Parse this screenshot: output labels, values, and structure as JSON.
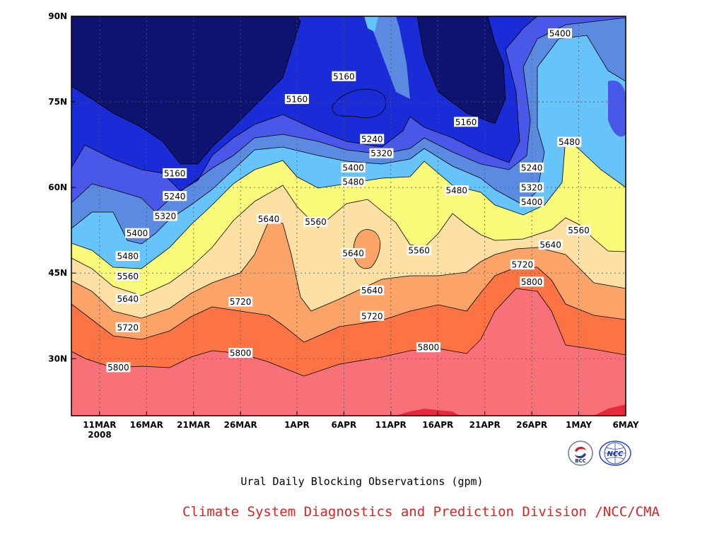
{
  "chart_data": {
    "type": "contour-filled",
    "title": "Ural Daily Blocking Observations (gpm)",
    "year_label": "2008",
    "x_ticks": [
      "11MAR",
      "16MAR",
      "21MAR",
      "26MAR",
      "1APR",
      "6APR",
      "11APR",
      "16APR",
      "21APR",
      "26APR",
      "1MAY",
      "6MAY"
    ],
    "y_ticks": [
      "30N",
      "45N",
      "60N",
      "75N",
      "90N"
    ],
    "xlim": [
      "2008-03-08",
      "2008-05-06"
    ],
    "ylim": [
      20,
      90
    ],
    "grid": true,
    "levels": [
      5160,
      5240,
      5320,
      5400,
      5480,
      5560,
      5640,
      5720,
      5800,
      5880
    ],
    "fill_colors": [
      "#0e1370",
      "#1a2cd8",
      "#4a58ea",
      "#5b8be0",
      "#66c4fa",
      "#fafa7a",
      "#fce0a4",
      "#fca468",
      "#fc7444",
      "#f87078",
      "#e6283c"
    ],
    "contour_labels": [
      {
        "value": 5160,
        "lat": 79.5,
        "date": "2008-04-06"
      },
      {
        "value": 5160,
        "lat": 75.5,
        "date": "2008-04-01"
      },
      {
        "value": 5160,
        "lat": 71.5,
        "date": "2008-04-19"
      },
      {
        "value": 5160,
        "lat": 62.5,
        "date": "2008-03-19"
      },
      {
        "value": 5240,
        "lat": 68.5,
        "date": "2008-04-09"
      },
      {
        "value": 5240,
        "lat": 63.5,
        "date": "2008-04-26"
      },
      {
        "value": 5240,
        "lat": 58.5,
        "date": "2008-03-19"
      },
      {
        "value": 5320,
        "lat": 66.0,
        "date": "2008-04-10"
      },
      {
        "value": 5320,
        "lat": 60.0,
        "date": "2008-04-26"
      },
      {
        "value": 5320,
        "lat": 55.0,
        "date": "2008-03-18"
      },
      {
        "value": 5400,
        "lat": 87.0,
        "date": "2008-04-29"
      },
      {
        "value": 5400,
        "lat": 63.5,
        "date": "2008-04-07"
      },
      {
        "value": 5400,
        "lat": 57.5,
        "date": "2008-04-26"
      },
      {
        "value": 5400,
        "lat": 52.0,
        "date": "2008-03-15"
      },
      {
        "value": 5480,
        "lat": 68.0,
        "date": "2008-04-30"
      },
      {
        "value": 5480,
        "lat": 61.0,
        "date": "2008-04-07"
      },
      {
        "value": 5480,
        "lat": 59.5,
        "date": "2008-04-18"
      },
      {
        "value": 5480,
        "lat": 48.0,
        "date": "2008-03-14"
      },
      {
        "value": 5560,
        "lat": 54.0,
        "date": "2008-04-03"
      },
      {
        "value": 5560,
        "lat": 52.5,
        "date": "2008-05-01"
      },
      {
        "value": 5560,
        "lat": 49.0,
        "date": "2008-04-14"
      },
      {
        "value": 5560,
        "lat": 44.5,
        "date": "2008-03-14"
      },
      {
        "value": 5640,
        "lat": 54.5,
        "date": "2008-03-29"
      },
      {
        "value": 5640,
        "lat": 48.5,
        "date": "2008-04-07"
      },
      {
        "value": 5640,
        "lat": 50.0,
        "date": "2008-04-28"
      },
      {
        "value": 5640,
        "lat": 42.0,
        "date": "2008-04-09"
      },
      {
        "value": 5640,
        "lat": 40.5,
        "date": "2008-03-14"
      },
      {
        "value": 5720,
        "lat": 46.5,
        "date": "2008-04-25"
      },
      {
        "value": 5720,
        "lat": 40.0,
        "date": "2008-03-26"
      },
      {
        "value": 5720,
        "lat": 37.5,
        "date": "2008-04-09"
      },
      {
        "value": 5720,
        "lat": 35.5,
        "date": "2008-03-14"
      },
      {
        "value": 5800,
        "lat": 43.5,
        "date": "2008-04-26"
      },
      {
        "value": 5800,
        "lat": 32.0,
        "date": "2008-04-15"
      },
      {
        "value": 5800,
        "lat": 31.0,
        "date": "2008-03-26"
      },
      {
        "value": 5800,
        "lat": 28.5,
        "date": "2008-03-13"
      }
    ]
  },
  "footer": {
    "caption": "Ural Daily Blocking Observations (gpm)",
    "credit": "Climate System Diagnostics and Prediction Division /NCC/CMA"
  },
  "logos": {
    "left_text": "BCC",
    "right_text": "NCC"
  }
}
